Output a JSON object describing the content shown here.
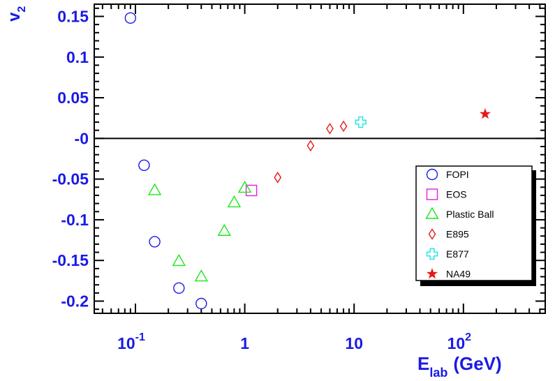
{
  "chart_data": {
    "type": "scatter",
    "xscale": "log",
    "xlim": [
      0.042,
      560
    ],
    "ylim": [
      -0.215,
      0.165
    ],
    "grid": false,
    "legend_position": "right",
    "ylabel_main": "v",
    "ylabel_sub": "2",
    "xlabel_main": "E",
    "xlabel_sub": "lab",
    "xlabel_unit": "(GeV)",
    "y_ticks": [
      {
        "value": 0.15,
        "label": "0.15"
      },
      {
        "value": 0.1,
        "label": "0.1"
      },
      {
        "value": 0.05,
        "label": "0.05"
      },
      {
        "value": 0,
        "label": "-0"
      },
      {
        "value": -0.05,
        "label": "-0.05"
      },
      {
        "value": -0.1,
        "label": "-0.1"
      },
      {
        "value": -0.15,
        "label": "-0.15"
      },
      {
        "value": -0.2,
        "label": "-0.2"
      }
    ],
    "x_ticks": [
      {
        "value": 0.1,
        "base": "10",
        "exp": "-1"
      },
      {
        "value": 1,
        "base": "1",
        "exp": ""
      },
      {
        "value": 10,
        "base": "10",
        "exp": ""
      },
      {
        "value": 100,
        "base": "10",
        "exp": "2"
      }
    ],
    "zero_line": 0,
    "series": [
      {
        "name": "FOPI",
        "marker": "circle",
        "color": "#1a1ae6",
        "x": [
          0.09,
          0.12,
          0.15,
          0.25,
          0.4
        ],
        "y": [
          0.148,
          -0.033,
          -0.127,
          -0.184,
          -0.203
        ]
      },
      {
        "name": "EOS",
        "marker": "square",
        "color": "#e619e6",
        "x": [
          1.15
        ],
        "y": [
          -0.064
        ]
      },
      {
        "name": "Plastic Ball",
        "marker": "triangle",
        "color": "#19e619",
        "x": [
          0.15,
          0.25,
          0.4,
          0.65,
          0.8,
          1.0
        ],
        "y": [
          -0.064,
          -0.151,
          -0.17,
          -0.114,
          -0.079,
          -0.061
        ]
      },
      {
        "name": "E895",
        "marker": "diamond",
        "color": "#e61919",
        "x": [
          2,
          4,
          6,
          8
        ],
        "y": [
          -0.048,
          -0.009,
          0.012,
          0.015
        ]
      },
      {
        "name": "E877",
        "marker": "cross",
        "color": "#19e6e6",
        "x": [
          11.5
        ],
        "y": [
          0.02
        ]
      },
      {
        "name": "NA49",
        "marker": "star",
        "color": "#e61919",
        "x": [
          158
        ],
        "y": [
          0.03
        ]
      }
    ]
  }
}
